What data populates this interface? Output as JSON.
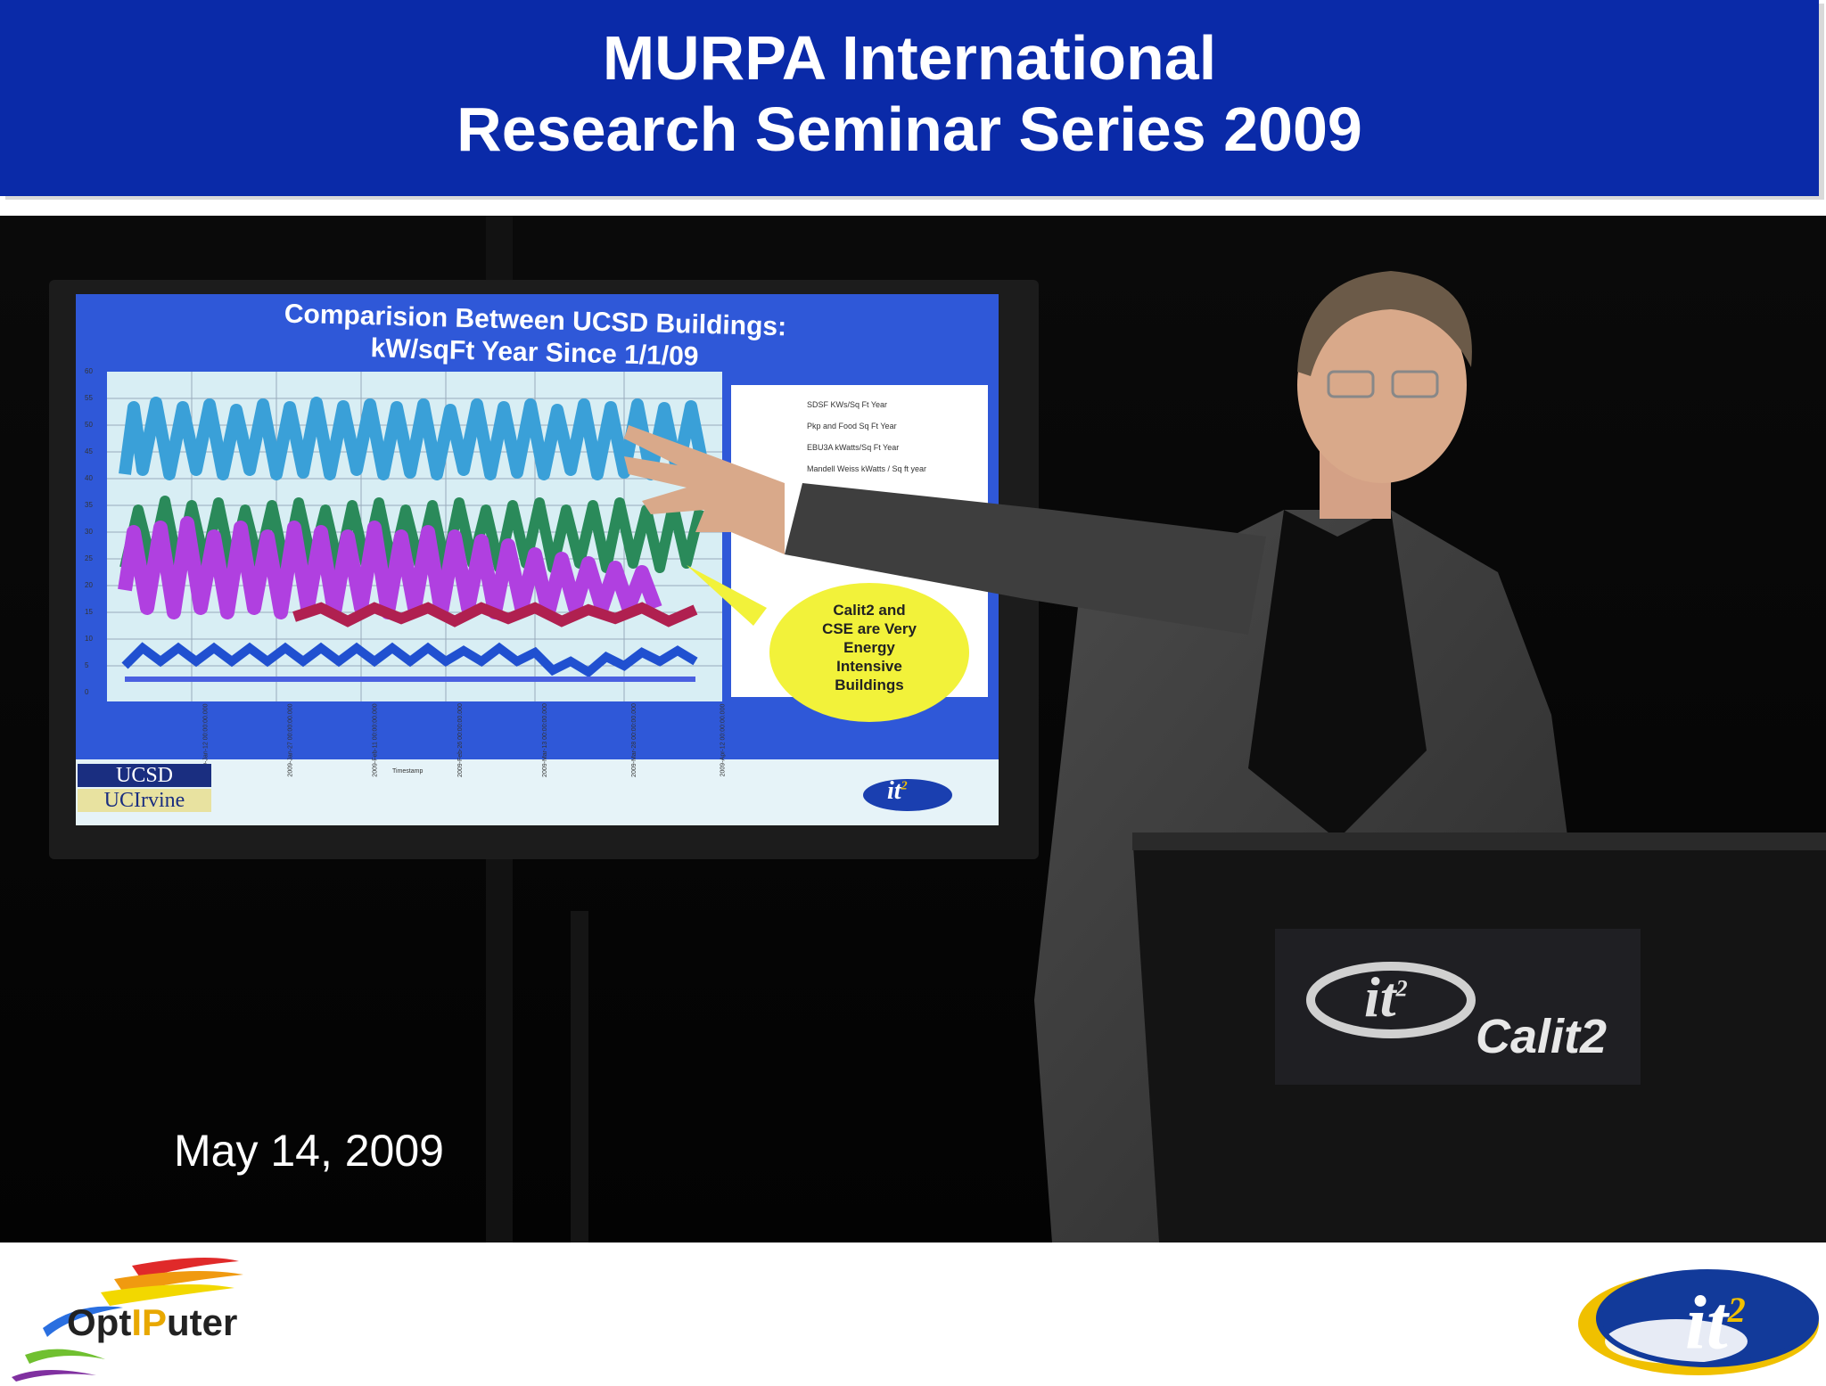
{
  "header": {
    "title_line1": "MURPA International",
    "title_line2": "Research Seminar Series 2009"
  },
  "slide": {
    "title_line1": "Comparision Between UCSD Buildings:",
    "title_line2": "kW/sqFt Year Since 1/1/09",
    "y_ticks": [
      "60",
      "55",
      "50",
      "45",
      "40",
      "35",
      "30",
      "25",
      "20",
      "15",
      "10",
      "5",
      "0"
    ],
    "x_ticks": [
      "2009-Jan-12 00:00:00.000",
      "2009-Jan-27 00:00:00.000",
      "2009-Feb-11 00:00:00.000",
      "2009-Feb-26 00:00:00.000",
      "2009-Mar-13 00:00:00.000",
      "2009-Mar-28 00:00:00.000",
      "2009-Apr-12 00:00:00.000"
    ],
    "x_axis_label": "Timestamp",
    "legend": [
      "SDSF KWs/Sq Ft Year",
      "Pkp and Food Sq Ft Year",
      "EBU3A kWatts/Sq Ft Year",
      "Mandell Weiss kWatts / Sq ft year"
    ],
    "callout": [
      "Calit2 and",
      "CSE are Very",
      "Energy",
      "Intensive",
      "Buildings"
    ],
    "logo_ucsd": "UCSD",
    "logo_uci": "UCIrvine",
    "logo_it2": "it",
    "logo_it2_sup": "2",
    "colors": {
      "series1": "#3aa0d8",
      "series2": "#2a8a5a",
      "series3": "#b040e0",
      "series4": "#b02050",
      "series5": "#2050d0"
    }
  },
  "podium": {
    "logo_it2": "it",
    "logo_it2_sup": "2",
    "logo_text": "Calit2"
  },
  "caption": {
    "date": "May 14, 2009"
  },
  "footer": {
    "optiputer_opt": "Opt",
    "optiputer_ip": "IP",
    "optiputer_uter": "uter",
    "it2": "it",
    "it2_sup": "2"
  }
}
